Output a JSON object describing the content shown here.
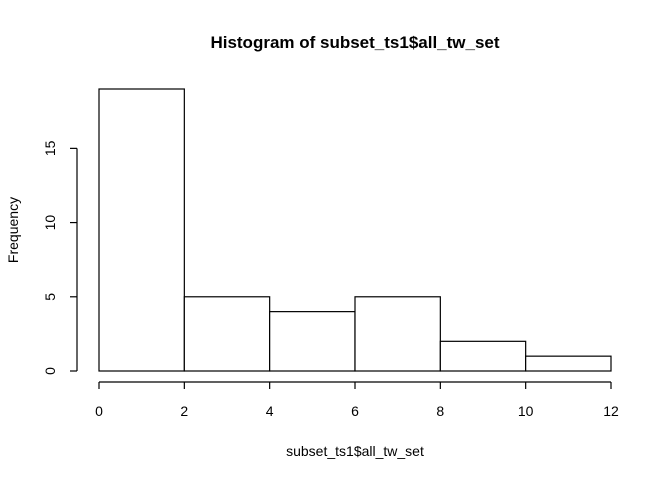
{
  "chart_data": {
    "type": "bar",
    "title": "Histogram of subset_ts1$all_tw_set",
    "xlabel": "subset_ts1$all_tw_set",
    "ylabel": "Frequency",
    "xlim": [
      0,
      12
    ],
    "ylim": [
      0,
      19
    ],
    "x_ticks": [
      "0",
      "2",
      "4",
      "6",
      "8",
      "10",
      "12"
    ],
    "y_ticks": [
      "0",
      "5",
      "10",
      "15"
    ],
    "bins": [
      {
        "from": 0,
        "to": 2,
        "value": 19
      },
      {
        "from": 2,
        "to": 4,
        "value": 5
      },
      {
        "from": 4,
        "to": 6,
        "value": 4
      },
      {
        "from": 6,
        "to": 8,
        "value": 5
      },
      {
        "from": 8,
        "to": 10,
        "value": 2
      },
      {
        "from": 10,
        "to": 12,
        "value": 1
      }
    ],
    "grid": false,
    "colors": {
      "bar_fill": "#ffffff",
      "bar_stroke": "#000000",
      "axis": "#000000"
    }
  }
}
